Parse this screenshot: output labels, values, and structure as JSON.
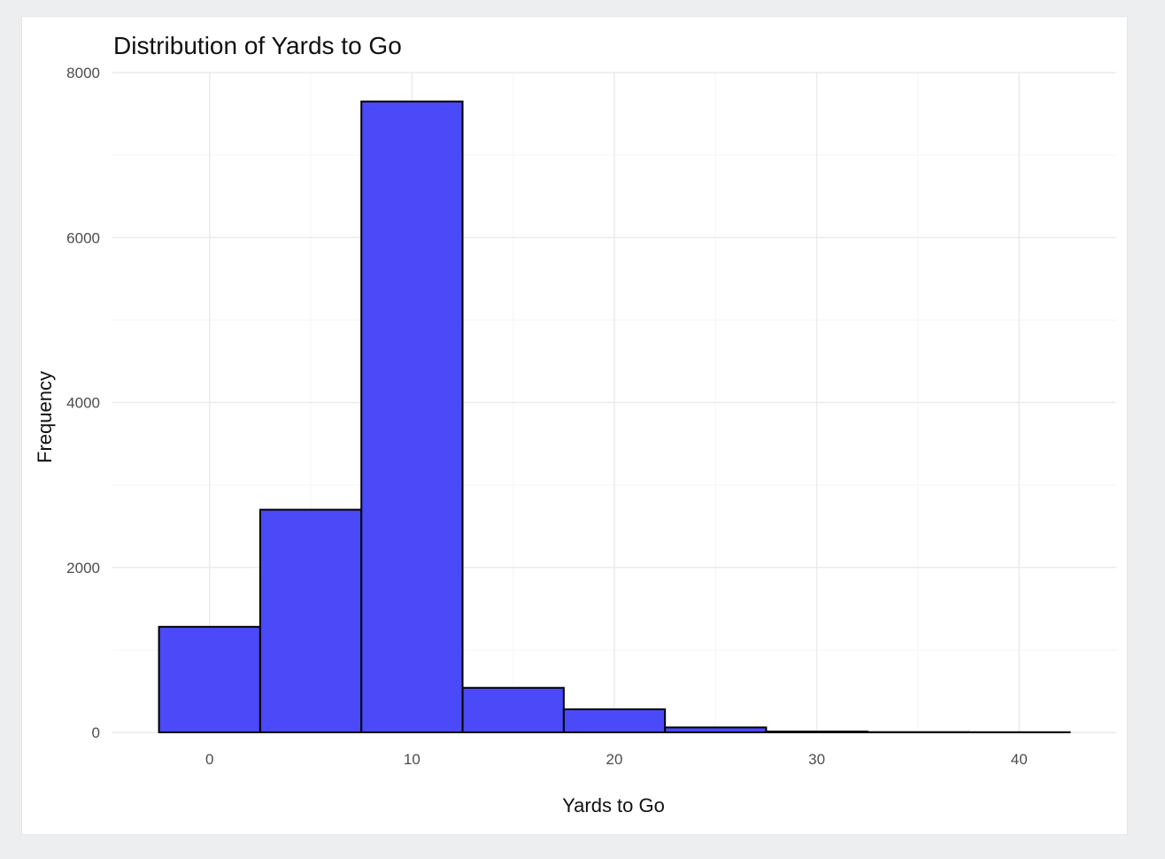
{
  "chart_data": {
    "type": "bar",
    "title": "Distribution of Yards to Go",
    "xlabel": "Yards to Go",
    "ylabel": "Frequency",
    "bin_width": 5,
    "bins": [
      {
        "start": -2.5,
        "end": 2.5,
        "count": 1280
      },
      {
        "start": 2.5,
        "end": 7.5,
        "count": 2700
      },
      {
        "start": 7.5,
        "end": 12.5,
        "count": 7650
      },
      {
        "start": 12.5,
        "end": 17.5,
        "count": 540
      },
      {
        "start": 17.5,
        "end": 22.5,
        "count": 280
      },
      {
        "start": 22.5,
        "end": 27.5,
        "count": 60
      },
      {
        "start": 27.5,
        "end": 32.5,
        "count": 10
      },
      {
        "start": 32.5,
        "end": 37.5,
        "count": 3
      },
      {
        "start": 37.5,
        "end": 42.5,
        "count": 2
      }
    ],
    "xlim": [
      -4.8,
      44.8
    ],
    "ylim": [
      0,
      8000
    ],
    "xticks": [
      0,
      10,
      20,
      30,
      40
    ],
    "xticks_minor": [
      5,
      15,
      25,
      35
    ],
    "yticks": [
      0,
      2000,
      4000,
      6000,
      8000
    ],
    "yticks_minor": [
      1000,
      3000,
      5000,
      7000
    ],
    "grid": true,
    "legend": "none",
    "colors": {
      "bar_fill": "#3b3bf7",
      "bar_edge": "#000000",
      "grid_major": "#ebebeb",
      "grid_minor": "#f5f5f5"
    }
  }
}
